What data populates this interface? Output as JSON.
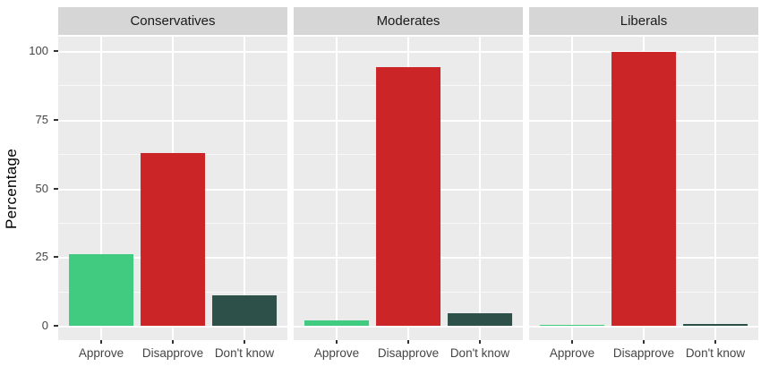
{
  "chart_data": {
    "type": "bar",
    "title": "",
    "xlabel": "",
    "ylabel": "Percentage",
    "ylim": [
      0,
      100
    ],
    "yticks": [
      0,
      25,
      50,
      75,
      100
    ],
    "yticks_minor": [
      12.5,
      37.5,
      62.5,
      87.5
    ],
    "y_expand_pct": 5.23,
    "grid": "on",
    "legend_position": "none",
    "categories": [
      "Approve",
      "Disapprove",
      "Don't know"
    ],
    "facets": [
      {
        "label": "Conservatives",
        "values": [
          26,
          63,
          11
        ]
      },
      {
        "label": "Moderates",
        "values": [
          2,
          94,
          4.5
        ]
      },
      {
        "label": "Liberals",
        "values": [
          0.4,
          99.6,
          0.6
        ]
      }
    ],
    "bar_colors": [
      "#40cb81",
      "#cc2527",
      "#2d5148"
    ],
    "style": {
      "panel_bg": "#ebebeb",
      "strip_bg": "#d6d6d6",
      "grid_color": "#ffffff",
      "axis_text_color": "#454545",
      "axis_title_color": "#111111",
      "strip_text_color": "#1a1a1a",
      "tick_color": "#333333"
    }
  }
}
